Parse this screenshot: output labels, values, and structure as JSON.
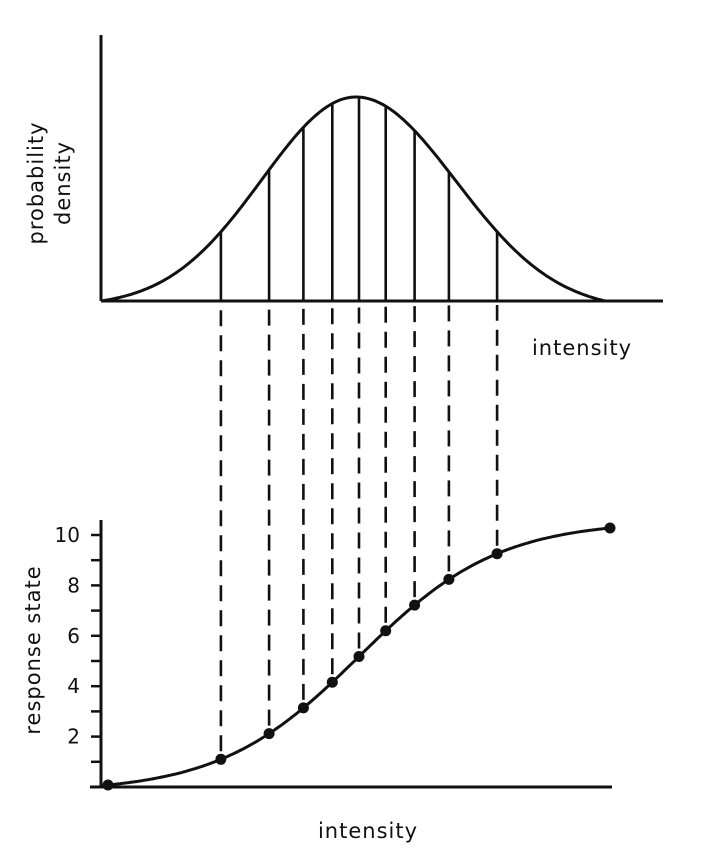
{
  "top_panel": {
    "ylabel_lines": [
      "probability",
      "density"
    ],
    "xlabel": "intensity"
  },
  "bottom_panel": {
    "ylabel": "response state",
    "xlabel": "intensity",
    "yticks": [
      {
        "value": 2,
        "label": "2"
      },
      {
        "value": 4,
        "label": "4"
      },
      {
        "value": 6,
        "label": "6"
      },
      {
        "value": 8,
        "label": "8"
      },
      {
        "value": 10,
        "label": "10"
      }
    ],
    "ylim": [
      0,
      10
    ]
  },
  "response_points": [
    0,
    1,
    2,
    3,
    4,
    5,
    6,
    7,
    8,
    9,
    10
  ],
  "colors": {
    "ink": "#111111",
    "background": "#ffffff"
  }
}
